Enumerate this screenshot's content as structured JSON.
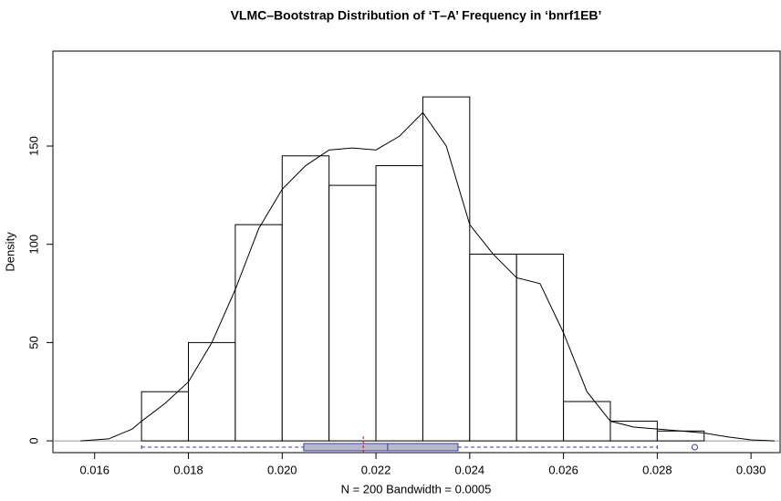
{
  "chart_data": {
    "type": "histogram",
    "title": "VLMC–Bootstrap Distribution of ‘T–A’ Frequency in ‘bnrf1EB’",
    "x_label": "N = 200   Bandwidth = 0.0005",
    "y_label": "Density",
    "bins": [
      0.017,
      0.018,
      0.019,
      0.02,
      0.021,
      0.022,
      0.023,
      0.024,
      0.025,
      0.026,
      0.027,
      0.028,
      0.029
    ],
    "values": [
      25,
      50,
      110,
      145,
      130,
      140,
      175,
      95,
      95,
      20,
      10,
      5
    ],
    "density": {
      "x": [
        0.0157,
        0.0163,
        0.0168,
        0.017,
        0.0175,
        0.018,
        0.0185,
        0.019,
        0.0195,
        0.02,
        0.0205,
        0.021,
        0.0215,
        0.022,
        0.0225,
        0.023,
        0.0235,
        0.024,
        0.0245,
        0.025,
        0.0255,
        0.026,
        0.0265,
        0.027,
        0.0275,
        0.028,
        0.0285,
        0.029,
        0.0295,
        0.03,
        0.0305
      ],
      "y": [
        0,
        1,
        6,
        10,
        19,
        30,
        50,
        77,
        108,
        128,
        140,
        148,
        149,
        148,
        155,
        167,
        150,
        110,
        95,
        83,
        80,
        55,
        25,
        10,
        7,
        6,
        5,
        4,
        2,
        0.5,
        0
      ]
    },
    "boxplot": {
      "whisker_low": 0.017,
      "q1": 0.02046,
      "median": 0.02225,
      "q3": 0.02375,
      "whisker_high": 0.028,
      "outliers": [
        0.0288
      ]
    },
    "mean": 0.02173,
    "xlim": [
      0.01511,
      0.03062
    ],
    "ylim": [
      -6,
      198.3
    ],
    "xticks": [
      {
        "value": 0.016,
        "label": "0.016"
      },
      {
        "value": 0.018,
        "label": "0.018"
      },
      {
        "value": 0.02,
        "label": "0.020"
      },
      {
        "value": 0.022,
        "label": "0.022"
      },
      {
        "value": 0.024,
        "label": "0.024"
      },
      {
        "value": 0.026,
        "label": "0.026"
      },
      {
        "value": 0.028,
        "label": "0.028"
      },
      {
        "value": 0.03,
        "label": "0.030"
      }
    ],
    "yticks": [
      0,
      50,
      100,
      150
    ],
    "bar_color": "#ffffff",
    "box_color": "#b8b8cc",
    "whisker_color": "#3c3c9a",
    "mean_color": "#e00000"
  }
}
